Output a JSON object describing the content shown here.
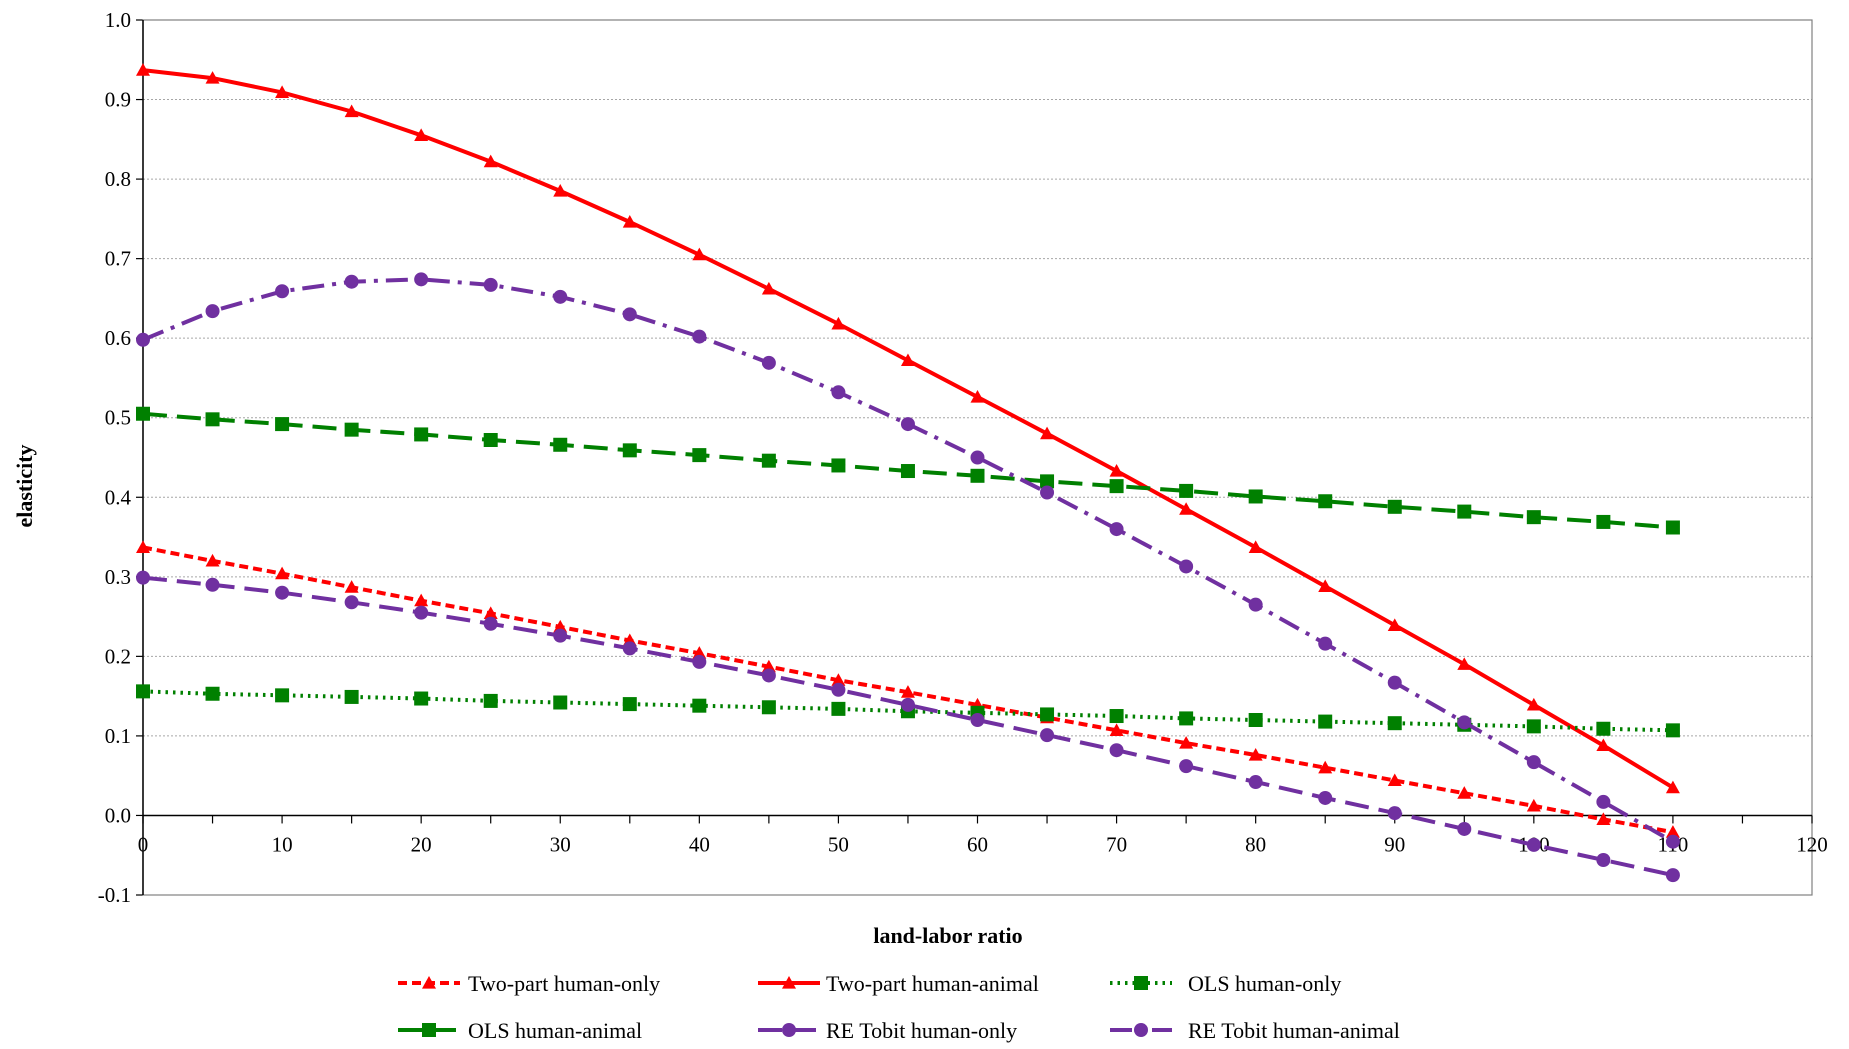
{
  "chart_data": {
    "type": "line",
    "title": "",
    "xlabel": "land-labor ratio",
    "ylabel": "elasticity",
    "xlim": [
      0,
      120
    ],
    "ylim": [
      -0.1,
      1.0
    ],
    "x_ticks": [
      "0",
      "10",
      "20",
      "30",
      "40",
      "50",
      "60",
      "70",
      "80",
      "90",
      "100",
      "110",
      "120"
    ],
    "y_ticks": [
      "-0.1",
      "0.0",
      "0.1",
      "0.2",
      "0.3",
      "0.4",
      "0.5",
      "0.6",
      "0.7",
      "0.8",
      "0.9",
      "1.0"
    ],
    "grid": "horizontal",
    "legend_position": "bottom",
    "x": [
      0,
      5,
      10,
      15,
      20,
      25,
      30,
      35,
      40,
      45,
      50,
      55,
      60,
      65,
      70,
      75,
      80,
      85,
      90,
      95,
      100,
      105,
      110
    ],
    "series": [
      {
        "name": "Two-part human-only",
        "color": "#ff0000",
        "dash": "short-dash",
        "marker": "triangle",
        "values": [
          0.337,
          0.32,
          0.304,
          0.287,
          0.27,
          0.254,
          0.237,
          0.22,
          0.204,
          0.187,
          0.17,
          0.155,
          0.139,
          0.123,
          0.107,
          0.091,
          0.076,
          0.06,
          0.044,
          0.028,
          0.012,
          -0.005,
          -0.021
        ]
      },
      {
        "name": "Two-part human-animal",
        "color": "#ff0000",
        "dash": "solid",
        "marker": "triangle",
        "values": [
          0.937,
          0.927,
          0.909,
          0.885,
          0.855,
          0.822,
          0.785,
          0.746,
          0.705,
          0.662,
          0.618,
          0.572,
          0.526,
          0.48,
          0.433,
          0.385,
          0.337,
          0.288,
          0.239,
          0.19,
          0.139,
          0.088,
          0.035
        ]
      },
      {
        "name": "OLS human-only",
        "color": "#008000",
        "dash": "dotted",
        "marker": "square",
        "values": [
          0.156,
          0.153,
          0.151,
          0.149,
          0.147,
          0.144,
          0.142,
          0.14,
          0.138,
          0.136,
          0.134,
          0.131,
          0.129,
          0.127,
          0.125,
          0.122,
          0.12,
          0.118,
          0.116,
          0.114,
          0.112,
          0.109,
          0.107
        ]
      },
      {
        "name": "OLS human-animal",
        "color": "#008000",
        "dash": "long-dash",
        "marker": "square",
        "values": [
          0.505,
          0.498,
          0.492,
          0.485,
          0.479,
          0.472,
          0.466,
          0.459,
          0.453,
          0.446,
          0.44,
          0.433,
          0.427,
          0.42,
          0.414,
          0.408,
          0.401,
          0.395,
          0.388,
          0.382,
          0.375,
          0.369,
          0.362
        ]
      },
      {
        "name": "RE Tobit human-only",
        "color": "#7030a0",
        "dash": "long-dash",
        "marker": "circle",
        "values": [
          0.299,
          0.29,
          0.28,
          0.268,
          0.255,
          0.241,
          0.226,
          0.21,
          0.193,
          0.176,
          0.158,
          0.139,
          0.12,
          0.101,
          0.082,
          0.062,
          0.042,
          0.022,
          0.003,
          -0.017,
          -0.037,
          -0.056,
          -0.075
        ]
      },
      {
        "name": "RE Tobit human-animal",
        "color": "#7030a0",
        "dash": "dash-dot",
        "marker": "circle",
        "values": [
          0.598,
          0.634,
          0.659,
          0.671,
          0.674,
          0.667,
          0.652,
          0.63,
          0.602,
          0.569,
          0.532,
          0.492,
          0.45,
          0.406,
          0.36,
          0.313,
          0.265,
          0.216,
          0.167,
          0.117,
          0.067,
          0.017,
          -0.033
        ]
      }
    ]
  }
}
